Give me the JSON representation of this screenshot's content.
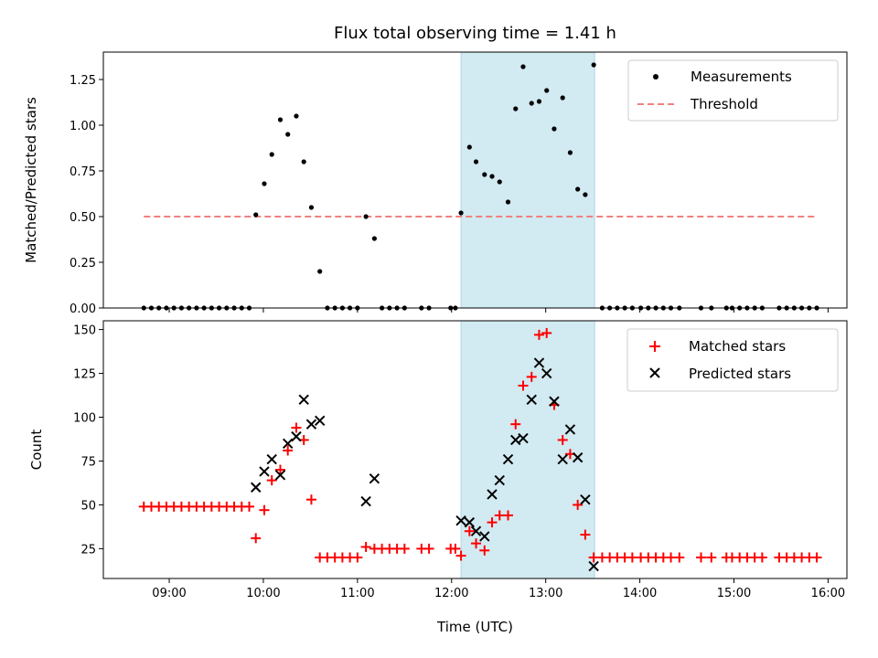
{
  "chart_data": [
    {
      "type": "scatter",
      "title": "Flux total observing time = 1.41 h",
      "xlabel": "",
      "ylabel": "Matched/Predicted stars",
      "xlim": [
        8.3,
        16.2
      ],
      "ylim": [
        0,
        1.4
      ],
      "xticks": [
        9,
        10,
        11,
        12,
        13,
        14,
        15,
        16
      ],
      "xtick_labels": [],
      "yticks": [
        0.0,
        0.25,
        0.5,
        0.75,
        1.0,
        1.25
      ],
      "ytick_labels": [
        "0.00",
        "0.25",
        "0.50",
        "0.75",
        "1.00",
        "1.25"
      ],
      "shaded_region": {
        "x_start": 12.1,
        "x_end": 13.52,
        "color": "#add8e6"
      },
      "legend": {
        "position": "top-right",
        "entries": [
          {
            "label": "Measurements",
            "marker": "dot",
            "color": "#000000"
          },
          {
            "label": "Threshold",
            "marker": "dashed-line",
            "color": "#f08080"
          }
        ]
      },
      "series": [
        {
          "name": "Threshold",
          "kind": "line",
          "style": "dashed",
          "color": "#f08080",
          "x": [
            8.73,
            15.88
          ],
          "y": [
            0.5,
            0.5
          ]
        },
        {
          "name": "Measurements",
          "kind": "scatter",
          "marker": "dot",
          "color": "#000000",
          "x": [
            8.73,
            8.81,
            8.89,
            8.97,
            9.05,
            9.13,
            9.21,
            9.29,
            9.37,
            9.45,
            9.53,
            9.61,
            9.69,
            9.77,
            9.85,
            9.92,
            10.01,
            10.09,
            10.18,
            10.26,
            10.35,
            10.43,
            10.51,
            10.6,
            10.68,
            10.76,
            10.84,
            10.92,
            11.0,
            11.09,
            11.18,
            11.26,
            11.34,
            11.42,
            11.5,
            11.68,
            11.76,
            11.99,
            12.04,
            12.1,
            12.19,
            12.26,
            12.35,
            12.43,
            12.51,
            12.6,
            12.68,
            12.76,
            12.85,
            12.93,
            13.01,
            13.09,
            13.18,
            13.26,
            13.34,
            13.42,
            13.51,
            13.6,
            13.68,
            13.76,
            13.84,
            13.92,
            14.01,
            14.09,
            14.17,
            14.25,
            14.33,
            14.42,
            14.65,
            14.76,
            14.92,
            14.98,
            15.06,
            15.14,
            15.22,
            15.3,
            15.48,
            15.56,
            15.64,
            15.72,
            15.8,
            15.88
          ],
          "y": [
            0,
            0,
            0,
            0,
            0,
            0,
            0,
            0,
            0,
            0,
            0,
            0,
            0,
            0,
            0,
            0.51,
            0.68,
            0.84,
            1.03,
            0.95,
            1.05,
            0.8,
            0.55,
            0.2,
            0,
            0,
            0,
            0,
            0,
            0.5,
            0.38,
            0,
            0,
            0,
            0,
            0,
            0,
            0,
            0,
            0.52,
            0.88,
            0.8,
            0.73,
            0.72,
            0.69,
            0.58,
            1.09,
            1.32,
            1.12,
            1.13,
            1.19,
            0.98,
            1.15,
            0.85,
            0.65,
            0.62,
            1.33,
            0,
            0,
            0,
            0,
            0,
            0,
            0,
            0,
            0,
            0,
            0,
            0,
            0,
            0,
            0,
            0,
            0,
            0,
            0,
            0,
            0,
            0,
            0,
            0,
            0
          ]
        }
      ]
    },
    {
      "type": "scatter",
      "title": "",
      "xlabel": "Time (UTC)",
      "ylabel": "Count",
      "xlim": [
        8.3,
        16.2
      ],
      "ylim": [
        8,
        155
      ],
      "xticks": [
        9,
        10,
        11,
        12,
        13,
        14,
        15,
        16
      ],
      "xtick_labels": [
        "09:00",
        "10:00",
        "11:00",
        "12:00",
        "13:00",
        "14:00",
        "15:00",
        "16:00"
      ],
      "yticks": [
        25,
        50,
        75,
        100,
        125,
        150
      ],
      "ytick_labels": [
        "25",
        "50",
        "75",
        "100",
        "125",
        "150"
      ],
      "shaded_region": {
        "x_start": 12.1,
        "x_end": 13.52,
        "color": "#add8e6"
      },
      "legend": {
        "position": "top-right",
        "entries": [
          {
            "label": "Matched stars",
            "marker": "plus",
            "color": "#ff0000"
          },
          {
            "label": "Predicted stars",
            "marker": "x",
            "color": "#000000"
          }
        ]
      },
      "series": [
        {
          "name": "Matched stars",
          "kind": "scatter",
          "marker": "plus",
          "color": "#ff0000",
          "x": [
            8.73,
            8.81,
            8.89,
            8.97,
            9.05,
            9.13,
            9.21,
            9.29,
            9.37,
            9.45,
            9.53,
            9.61,
            9.69,
            9.77,
            9.85,
            9.92,
            10.01,
            10.09,
            10.18,
            10.26,
            10.35,
            10.43,
            10.51,
            10.6,
            10.68,
            10.76,
            10.84,
            10.92,
            11.0,
            11.09,
            11.18,
            11.26,
            11.34,
            11.42,
            11.5,
            11.68,
            11.76,
            11.99,
            12.04,
            12.1,
            12.19,
            12.26,
            12.35,
            12.43,
            12.51,
            12.6,
            12.68,
            12.76,
            12.85,
            12.93,
            13.01,
            13.09,
            13.18,
            13.26,
            13.34,
            13.42,
            13.51,
            13.6,
            13.68,
            13.76,
            13.84,
            13.92,
            14.01,
            14.09,
            14.17,
            14.25,
            14.33,
            14.42,
            14.65,
            14.76,
            14.92,
            14.98,
            15.06,
            15.14,
            15.22,
            15.3,
            15.48,
            15.56,
            15.64,
            15.72,
            15.8,
            15.88
          ],
          "y": [
            49,
            49,
            49,
            49,
            49,
            49,
            49,
            49,
            49,
            49,
            49,
            49,
            49,
            49,
            49,
            31,
            47,
            64,
            70,
            81,
            94,
            87,
            53,
            20,
            20,
            20,
            20,
            20,
            20,
            26,
            25,
            25,
            25,
            25,
            25,
            25,
            25,
            25,
            25,
            21,
            35,
            28,
            24,
            40,
            44,
            44,
            96,
            118,
            123,
            147,
            148,
            107,
            87,
            79,
            50,
            33,
            20,
            20,
            20,
            20,
            20,
            20,
            20,
            20,
            20,
            20,
            20,
            20,
            20,
            20,
            20,
            20,
            20,
            20,
            20,
            20,
            20,
            20,
            20,
            20,
            20,
            20
          ]
        },
        {
          "name": "Predicted stars",
          "kind": "scatter",
          "marker": "x",
          "color": "#000000",
          "x": [
            9.92,
            10.01,
            10.09,
            10.18,
            10.26,
            10.35,
            10.43,
            10.51,
            10.6,
            11.09,
            11.18,
            12.1,
            12.19,
            12.26,
            12.35,
            12.43,
            12.51,
            12.6,
            12.68,
            12.76,
            12.85,
            12.93,
            13.01,
            13.09,
            13.18,
            13.26,
            13.34,
            13.42,
            13.51
          ],
          "y": [
            60,
            69,
            76,
            67,
            85,
            89,
            110,
            96,
            98,
            52,
            65,
            41,
            40,
            35,
            32,
            56,
            64,
            76,
            87,
            88,
            110,
            131,
            125,
            109,
            76,
            93,
            77,
            53,
            15
          ]
        }
      ]
    }
  ]
}
